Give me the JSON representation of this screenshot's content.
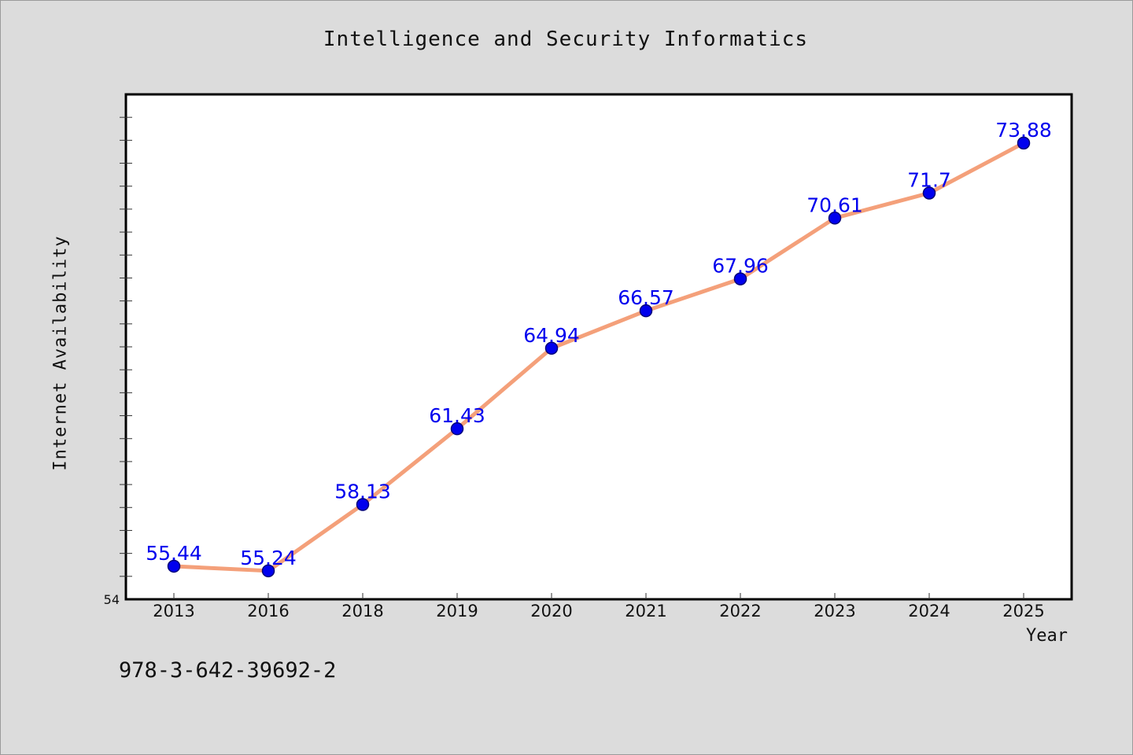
{
  "chart_data": {
    "type": "line",
    "title": "Intelligence and Security Informatics",
    "xlabel": "Year",
    "ylabel": "Internet Availability",
    "categories": [
      "2013",
      "2016",
      "2018",
      "2019",
      "2020",
      "2021",
      "2022",
      "2023",
      "2024",
      "2025"
    ],
    "series": [
      {
        "values": [
          55.44,
          55.24,
          58.13,
          61.43,
          64.94,
          66.57,
          67.96,
          70.61,
          71.7,
          73.88
        ]
      }
    ],
    "data_labels": [
      "55.44",
      "55.24",
      "58.13",
      "61.43",
      "64.94",
      "66.57",
      "67.96",
      "70.61",
      "71.7",
      "73.88"
    ],
    "ylim": [
      54,
      76
    ],
    "ytick_labels": [
      "54"
    ],
    "grid": false,
    "line_color": "#f4a07a",
    "marker_color": "#0000ee",
    "label_color": "#0000ee",
    "plot_background": "#ffffff",
    "page_background": "#dcdcdc"
  },
  "footer": {
    "isbn": "978-3-642-39692-2"
  }
}
